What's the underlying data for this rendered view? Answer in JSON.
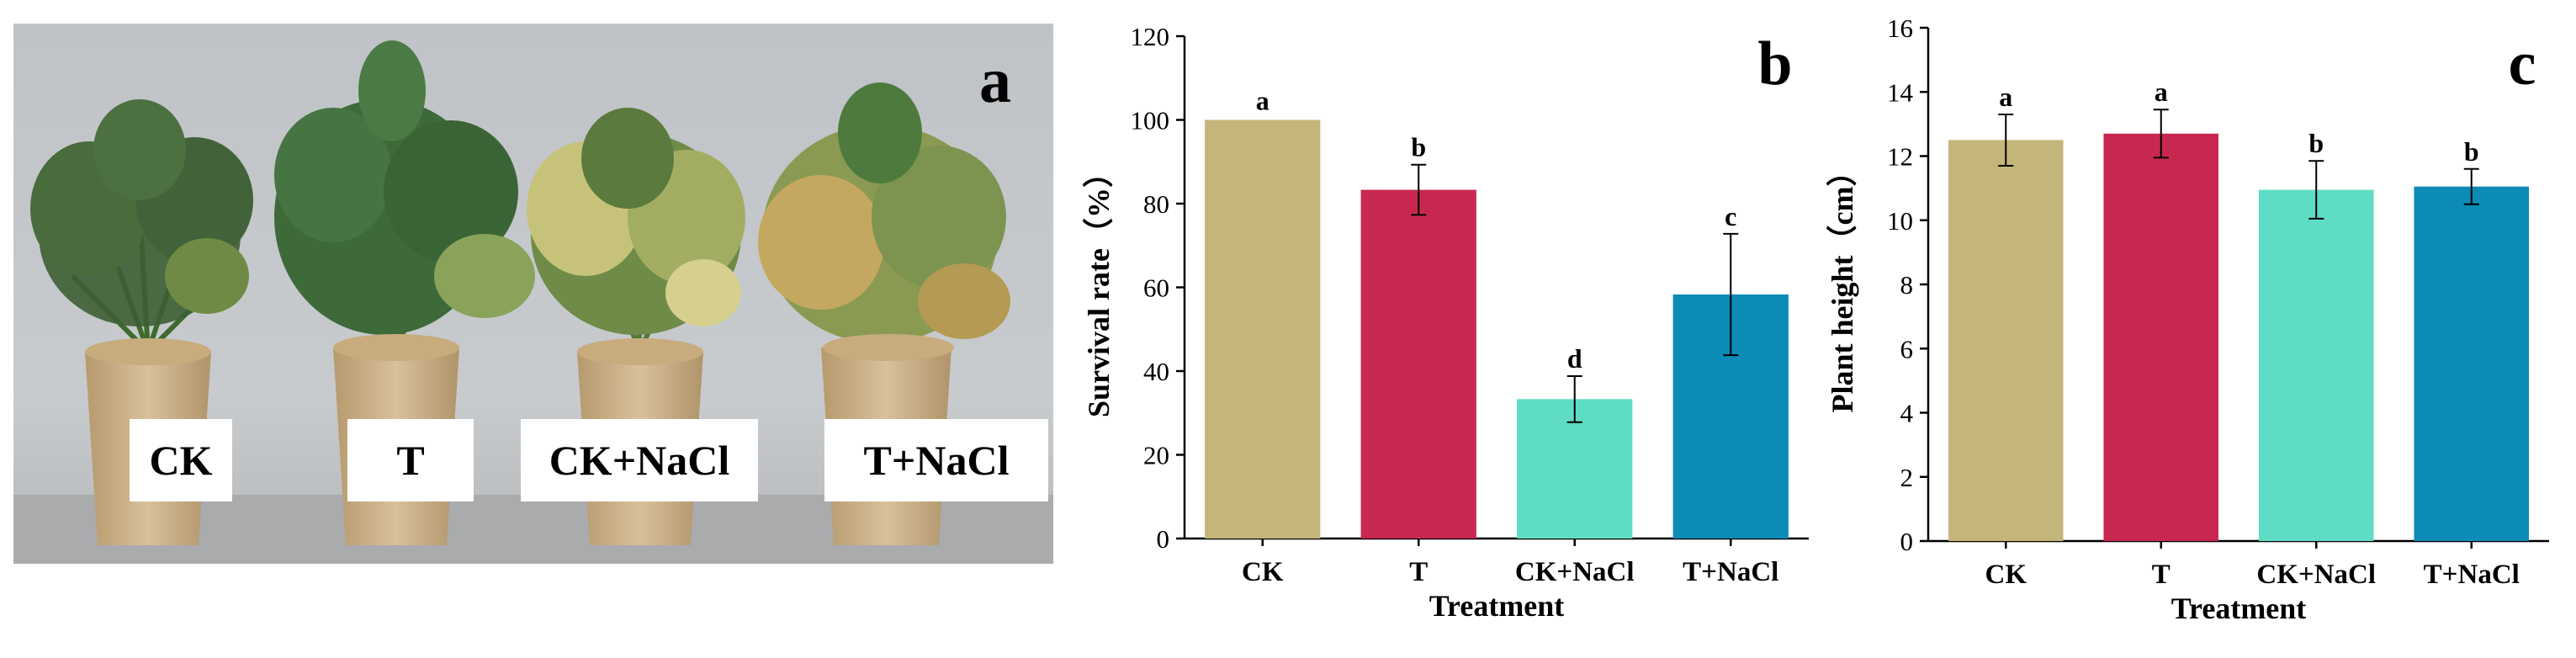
{
  "panel_a": {
    "letter": "a",
    "pot_labels": [
      "CK",
      "T",
      "CK+NaCl",
      "T+NaCl"
    ]
  },
  "chart_data": [
    {
      "type": "bar",
      "panel_letter": "b",
      "title": "",
      "xlabel": "Treatment",
      "ylabel": "Survival rate（%）",
      "categories": [
        "CK",
        "T",
        "CK+NaCl",
        "T+NaCl"
      ],
      "values": [
        100,
        83.3,
        33.3,
        58.3
      ],
      "errors": [
        0,
        6,
        5.5,
        14.5
      ],
      "significance_letters": [
        "a",
        "b",
        "d",
        "c"
      ],
      "colors": [
        "#c4b57a",
        "#c8284f",
        "#5fdcc4",
        "#0b8bb5"
      ],
      "ylim": [
        0,
        120
      ],
      "yticks": [
        0,
        20,
        40,
        60,
        80,
        100,
        120
      ],
      "grid": false,
      "legend": "none"
    },
    {
      "type": "bar",
      "panel_letter": "c",
      "title": "",
      "xlabel": "Treatment",
      "ylabel": "Plant height（cm）",
      "categories": [
        "CK",
        "T",
        "CK+NaCl",
        "T+NaCl"
      ],
      "values": [
        12.5,
        12.7,
        10.95,
        11.05
      ],
      "errors": [
        0.8,
        0.75,
        0.9,
        0.55
      ],
      "significance_letters": [
        "a",
        "a",
        "b",
        "b"
      ],
      "colors": [
        "#c4b57a",
        "#c8284f",
        "#5fdcc4",
        "#0b8bb5"
      ],
      "ylim": [
        0,
        16
      ],
      "yticks": [
        0,
        2,
        4,
        6,
        8,
        10,
        12,
        14,
        16
      ],
      "grid": false,
      "legend": "none"
    }
  ]
}
